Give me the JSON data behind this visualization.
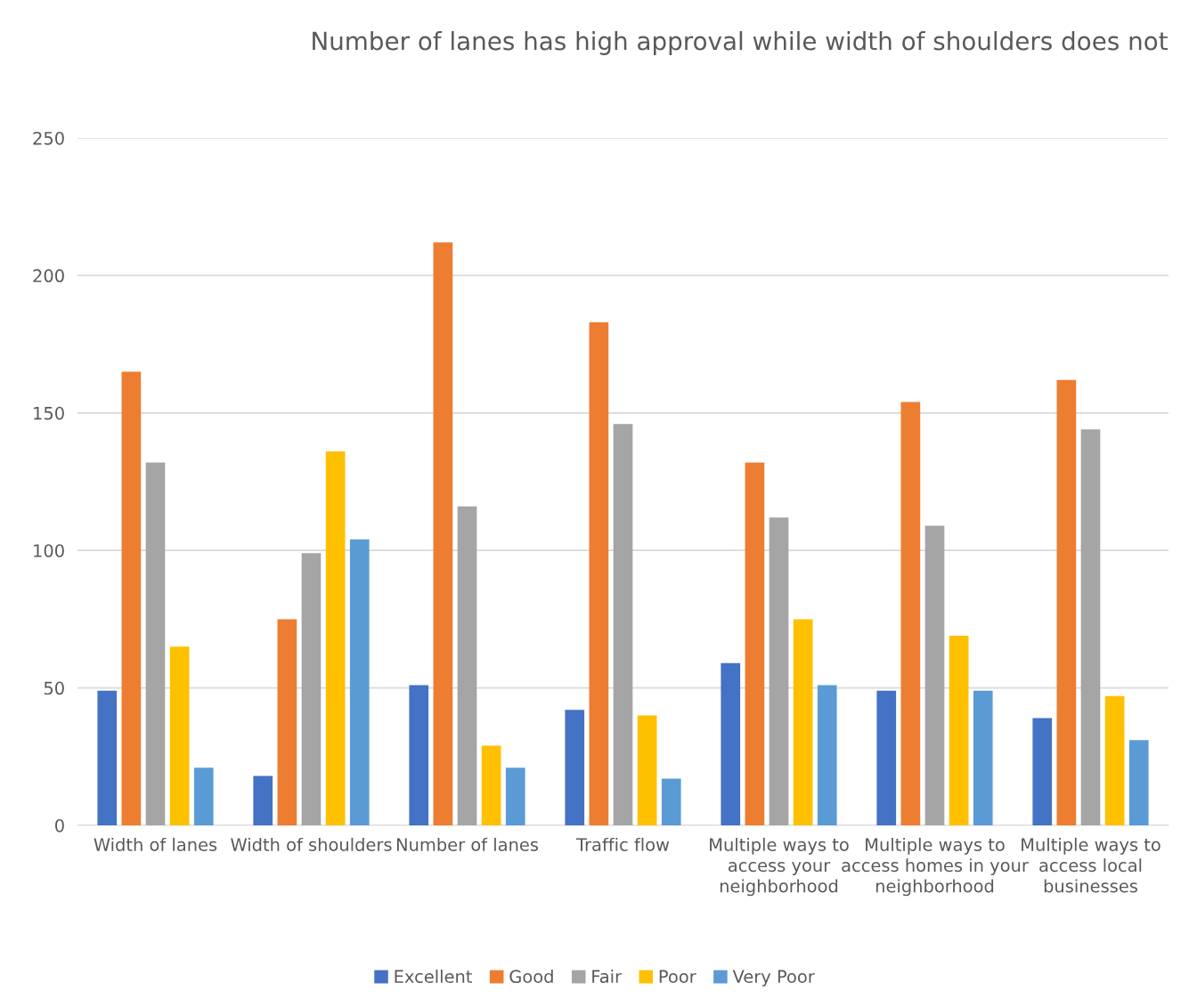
{
  "chart_data": {
    "type": "bar",
    "title": "Number of lanes has high approval while width of shoulders does not",
    "categories": [
      "Width of lanes",
      "Width of shoulders",
      "Number of lanes",
      "Traffic flow",
      "Multiple ways to access your neighborhood",
      "Multiple ways to access homes in your neighborhood",
      "Multiple ways to access local businesses"
    ],
    "series": [
      {
        "name": "Excellent",
        "color": "#4472c4",
        "values": [
          49,
          18,
          51,
          42,
          59,
          49,
          39
        ]
      },
      {
        "name": "Good",
        "color": "#ed7d31",
        "values": [
          165,
          75,
          212,
          183,
          132,
          154,
          162
        ]
      },
      {
        "name": "Fair",
        "color": "#a5a5a5",
        "values": [
          132,
          99,
          116,
          146,
          112,
          109,
          144
        ]
      },
      {
        "name": "Poor",
        "color": "#ffc000",
        "values": [
          65,
          136,
          29,
          40,
          75,
          69,
          47
        ]
      },
      {
        "name": "Very Poor",
        "color": "#5b9bd5",
        "values": [
          21,
          104,
          21,
          17,
          51,
          49,
          31
        ]
      }
    ],
    "ylim": [
      0,
      250
    ],
    "yticks": [
      0,
      50,
      100,
      150,
      200,
      250
    ],
    "grid": "y",
    "legend": "bottom"
  }
}
